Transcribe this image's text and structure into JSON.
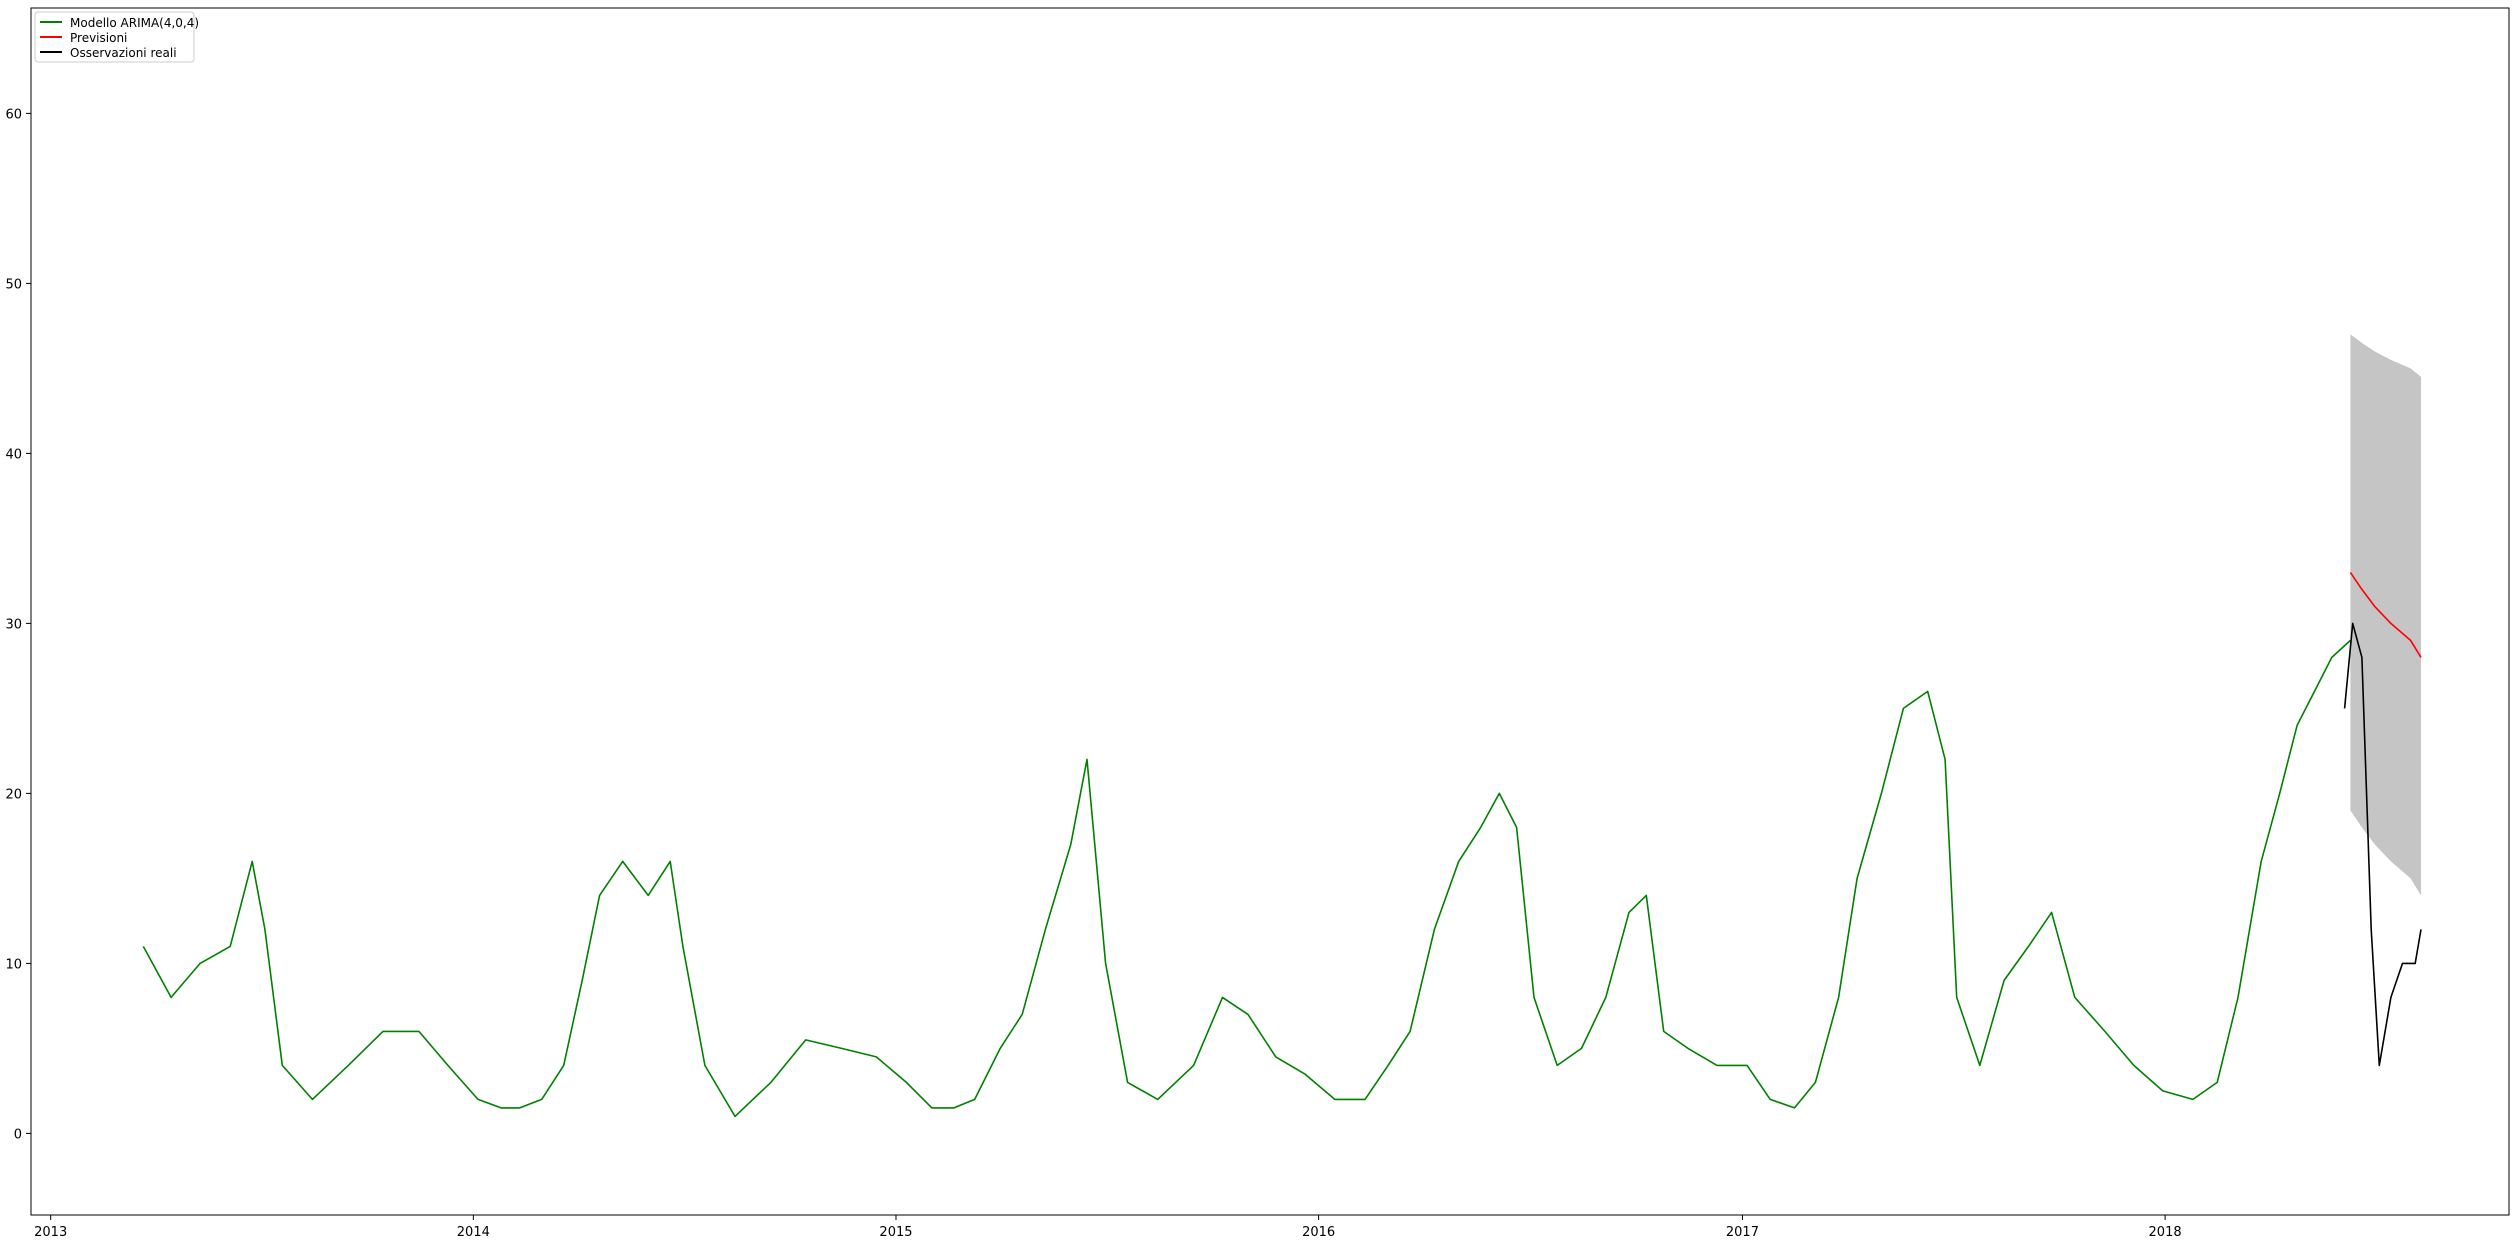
{
  "chart_data": {
    "type": "line",
    "title": "",
    "xlabel": "",
    "ylabel": "",
    "xlim": [
      "2012-12-15",
      "2018-10-25"
    ],
    "ylim": [
      -4.8,
      66.2
    ],
    "x_ticks": [
      "2013",
      "2014",
      "2015",
      "2016",
      "2017",
      "2018"
    ],
    "y_ticks": [
      0,
      10,
      20,
      30,
      40,
      50,
      60
    ],
    "legend_position": "upper-left",
    "legend": [
      "Modello ARIMA(4,0,4)",
      "Previsioni",
      "Osservazioni reali"
    ],
    "colors": {
      "fitted": "#008000",
      "forecast": "#ff0000",
      "actual": "#000000",
      "confidence_band": "#bfbfbf",
      "axes": "#000000"
    },
    "series": [
      {
        "name": "Modello ARIMA(4,0,4)",
        "color": "#008000",
        "x": [
          "2013-03-22",
          "2013-04-15",
          "2013-05-10",
          "2013-06-05",
          "2013-06-24",
          "2013-07-05",
          "2013-07-20",
          "2013-08-15",
          "2013-09-15",
          "2013-10-15",
          "2013-11-15",
          "2013-12-10",
          "2014-01-05",
          "2014-01-25",
          "2014-02-10",
          "2014-03-01",
          "2014-03-20",
          "2014-04-05",
          "2014-04-20",
          "2014-05-10",
          "2014-06-01",
          "2014-06-20",
          "2014-07-01",
          "2014-07-20",
          "2014-08-15",
          "2014-09-15",
          "2014-10-15",
          "2014-11-15",
          "2014-12-15",
          "2015-01-10",
          "2015-02-01",
          "2015-02-20",
          "2015-03-10",
          "2015-04-01",
          "2015-04-20",
          "2015-05-10",
          "2015-06-01",
          "2015-06-15",
          "2015-07-01",
          "2015-07-20",
          "2015-08-15",
          "2015-09-15",
          "2015-10-10",
          "2015-11-01",
          "2015-11-25",
          "2015-12-20",
          "2016-01-15",
          "2016-02-10",
          "2016-03-01",
          "2016-03-20",
          "2016-04-10",
          "2016-05-01",
          "2016-05-20",
          "2016-06-05",
          "2016-06-20",
          "2016-07-05",
          "2016-07-25",
          "2016-08-15",
          "2016-09-05",
          "2016-09-25",
          "2016-10-10",
          "2016-10-25",
          "2016-11-15",
          "2016-12-10",
          "2017-01-05",
          "2017-01-25",
          "2017-02-15",
          "2017-03-05",
          "2017-03-25",
          "2017-04-10",
          "2017-05-01",
          "2017-05-20",
          "2017-06-10",
          "2017-06-25",
          "2017-07-05",
          "2017-07-25",
          "2017-08-15",
          "2017-09-05",
          "2017-09-25",
          "2017-10-15",
          "2017-11-10",
          "2017-12-05",
          "2017-12-30",
          "2018-01-25",
          "2018-02-15",
          "2018-03-05",
          "2018-03-25",
          "2018-04-10",
          "2018-04-25",
          "2018-05-10",
          "2018-05-25",
          "2018-06-10"
        ],
        "y": [
          11,
          8,
          10,
          11,
          16,
          12,
          4,
          2,
          4,
          6,
          6,
          4,
          2,
          1.5,
          1.5,
          2,
          4,
          9,
          14,
          16,
          14,
          16,
          11,
          4,
          1,
          3,
          5.5,
          5,
          4.5,
          3,
          1.5,
          1.5,
          2,
          5,
          7,
          12,
          17,
          22,
          10,
          3,
          2,
          4,
          8,
          7,
          4.5,
          3.5,
          2,
          2,
          4,
          6,
          12,
          16,
          18,
          20,
          18,
          8,
          4,
          5,
          8,
          13,
          14,
          6,
          5,
          4,
          4,
          2,
          1.5,
          3,
          8,
          15,
          20,
          25,
          26,
          22,
          8,
          4,
          9,
          11,
          13,
          8,
          6,
          4,
          2.5,
          2,
          3,
          8,
          16,
          20,
          24,
          26,
          28,
          29
        ]
      },
      {
        "name": "Previsioni",
        "color": "#ff0000",
        "x": [
          "2018-06-10",
          "2018-06-20",
          "2018-07-01",
          "2018-07-15",
          "2018-08-01",
          "2018-08-10"
        ],
        "y": [
          33,
          32,
          31,
          30,
          29,
          28
        ]
      },
      {
        "name": "Osservazioni reali",
        "color": "#000000",
        "x": [
          "2018-06-05",
          "2018-06-12",
          "2018-06-20",
          "2018-06-28",
          "2018-07-05",
          "2018-07-15",
          "2018-07-25",
          "2018-08-05",
          "2018-08-10"
        ],
        "y": [
          25,
          30,
          28,
          12,
          4,
          8,
          10,
          10,
          12
        ]
      }
    ],
    "confidence_band": {
      "x": [
        "2018-06-10",
        "2018-06-20",
        "2018-07-01",
        "2018-07-15",
        "2018-08-01",
        "2018-08-10"
      ],
      "upper": [
        47,
        46.5,
        46,
        45.5,
        45,
        44.5
      ],
      "lower": [
        19,
        18,
        17,
        16,
        15,
        14
      ]
    }
  }
}
